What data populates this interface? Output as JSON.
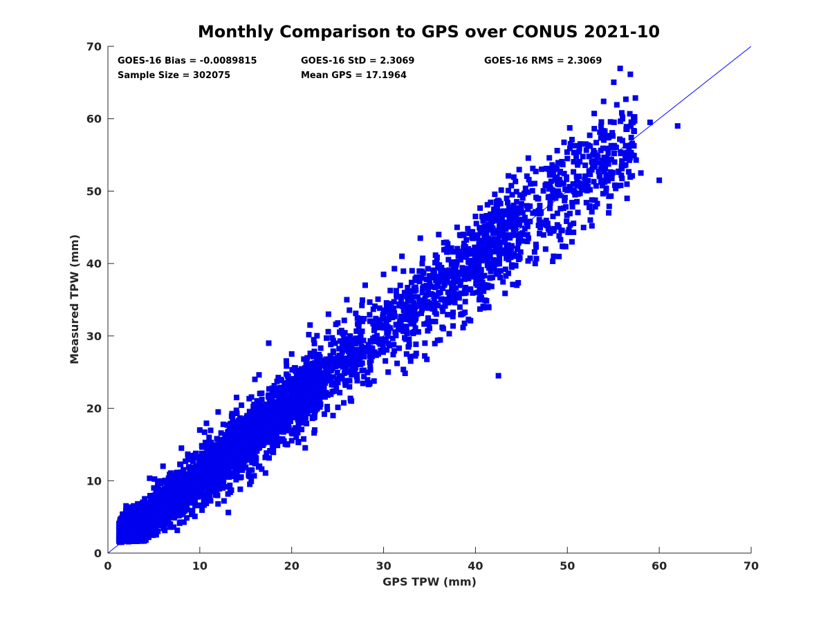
{
  "chart_data": {
    "type": "scatter",
    "title": "Monthly Comparison to GPS over CONUS 2021-10",
    "xlabel": "GPS TPW (mm)",
    "ylabel": "Measured TPW (mm)",
    "xlim": [
      0,
      70
    ],
    "ylim": [
      0,
      70
    ],
    "xticks": [
      "0",
      "10",
      "20",
      "30",
      "40",
      "50",
      "60",
      "70"
    ],
    "yticks": [
      "0",
      "10",
      "20",
      "30",
      "40",
      "50",
      "60",
      "70"
    ],
    "grid": false,
    "marker_color": "#0000ee",
    "line_color": "#0000ff",
    "reference_line": {
      "x": [
        0,
        70
      ],
      "y": [
        0,
        70
      ]
    },
    "stats": {
      "bias": "GOES-16 Bias = -0.0089815",
      "std": "GOES-16 StD = 2.3069",
      "rms": "GOES-16 RMS = 2.3069",
      "sample_size": "Sample Size = 302075",
      "mean_gps": "Mean GPS = 17.1964"
    },
    "series": [
      {
        "points": [
          [
            1.5,
            2.5
          ],
          [
            2.0,
            4.0
          ],
          [
            2.5,
            6.0
          ],
          [
            3.0,
            2.0
          ],
          [
            3.5,
            5.0
          ],
          [
            4.0,
            7.5
          ],
          [
            4.5,
            3.0
          ],
          [
            5.0,
            9.0
          ],
          [
            6.0,
            12.0
          ],
          [
            6.5,
            4.5
          ],
          [
            7.0,
            9.5
          ],
          [
            8.0,
            14.5
          ],
          [
            8.5,
            6.0
          ],
          [
            9.0,
            11.0
          ],
          [
            10.0,
            17.0
          ],
          [
            10.5,
            8.0
          ],
          [
            11.0,
            13.0
          ],
          [
            12.0,
            19.5
          ],
          [
            12.5,
            9.0
          ],
          [
            13.0,
            15.0
          ],
          [
            14.0,
            21.5
          ],
          [
            14.5,
            10.5
          ],
          [
            15.0,
            17.0
          ],
          [
            16.0,
            24.0
          ],
          [
            16.5,
            12.0
          ],
          [
            17.0,
            19.0
          ],
          [
            17.5,
            29.0
          ],
          [
            18.0,
            14.5
          ],
          [
            19.0,
            21.0
          ],
          [
            20.0,
            27.5
          ],
          [
            20.5,
            16.0
          ],
          [
            21.0,
            23.0
          ],
          [
            22.0,
            31.5
          ],
          [
            22.5,
            17.0
          ],
          [
            23.0,
            25.0
          ],
          [
            24.0,
            33.0
          ],
          [
            24.5,
            19.0
          ],
          [
            25.0,
            27.0
          ],
          [
            26.0,
            35.0
          ],
          [
            26.5,
            21.0
          ],
          [
            27.0,
            29.5
          ],
          [
            28.0,
            37.0
          ],
          [
            28.5,
            23.5
          ],
          [
            29.0,
            31.0
          ],
          [
            30.0,
            38.5
          ],
          [
            30.5,
            25.0
          ],
          [
            31.0,
            33.0
          ],
          [
            32.0,
            41.0
          ],
          [
            32.5,
            27.5
          ],
          [
            33.0,
            35.0
          ],
          [
            34.0,
            43.5
          ],
          [
            34.5,
            29.0
          ],
          [
            35.0,
            37.0
          ],
          [
            36.0,
            44.0
          ],
          [
            36.5,
            31.0
          ],
          [
            37.0,
            39.0
          ],
          [
            38.0,
            45.0
          ],
          [
            38.5,
            33.0
          ],
          [
            39.0,
            41.0
          ],
          [
            40.0,
            46.5
          ],
          [
            40.5,
            35.5
          ],
          [
            41.0,
            43.0
          ],
          [
            42.0,
            47.5
          ],
          [
            42.5,
            24.5
          ],
          [
            43.0,
            44.0
          ],
          [
            44.0,
            49.5
          ],
          [
            44.5,
            37.0
          ],
          [
            45.0,
            46.0
          ],
          [
            46.0,
            51.0
          ],
          [
            46.5,
            40.0
          ],
          [
            47.0,
            48.0
          ],
          [
            48.0,
            53.0
          ],
          [
            48.5,
            41.0
          ],
          [
            49.0,
            50.0
          ],
          [
            50.0,
            54.5
          ],
          [
            50.5,
            43.0
          ],
          [
            51.0,
            52.0
          ],
          [
            52.0,
            56.5
          ],
          [
            52.5,
            46.0
          ],
          [
            53.0,
            54.0
          ],
          [
            54.0,
            58.0
          ],
          [
            54.5,
            47.0
          ],
          [
            55.0,
            56.0
          ],
          [
            56.0,
            60.0
          ],
          [
            56.5,
            49.0
          ],
          [
            57.0,
            55.0
          ],
          [
            58.0,
            52.5
          ],
          [
            59.0,
            59.5
          ],
          [
            60.0,
            51.5
          ],
          [
            62.0,
            59.0
          ]
        ]
      }
    ]
  }
}
